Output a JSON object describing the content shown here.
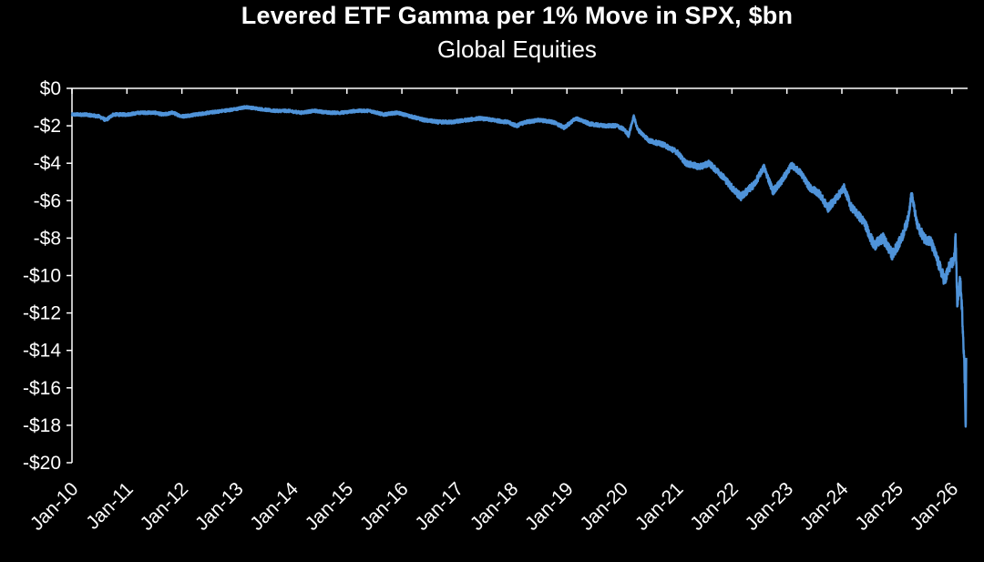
{
  "chart_data": {
    "type": "line",
    "title": "Levered ETF Gamma per 1% Move in SPX, $bn",
    "subtitle": "Global Equities",
    "xlabel": "",
    "ylabel": "",
    "grid": false,
    "legend": "none",
    "colors": {
      "background": "#000000",
      "axis": "#ffffff",
      "line": "#4f93d9",
      "text": "#ffffff"
    },
    "xlim": [
      "2010-01-01",
      "2026-04-15"
    ],
    "ylim": [
      -20,
      0
    ],
    "y_ticks": [
      0,
      -2,
      -4,
      -6,
      -8,
      -10,
      -12,
      -14,
      -16,
      -18,
      -20
    ],
    "y_tick_labels": [
      "$0",
      "-$2",
      "-$4",
      "-$6",
      "-$8",
      "-$10",
      "-$12",
      "-$14",
      "-$16",
      "-$18",
      "-$20"
    ],
    "x_tick_labels": [
      "Jan-10",
      "Jan-11",
      "Jan-12",
      "Jan-13",
      "Jan-14",
      "Jan-15",
      "Jan-16",
      "Jan-17",
      "Jan-18",
      "Jan-19",
      "Jan-20",
      "Jan-21",
      "Jan-22",
      "Jan-23",
      "Jan-24",
      "Jan-25",
      "Jan-26"
    ],
    "x_tick_dates": [
      "2010-01-01",
      "2011-01-01",
      "2012-01-01",
      "2013-01-01",
      "2014-01-01",
      "2015-01-01",
      "2016-01-01",
      "2017-01-01",
      "2018-01-01",
      "2019-01-01",
      "2020-01-01",
      "2021-01-01",
      "2022-01-01",
      "2023-01-01",
      "2024-01-01",
      "2025-01-01",
      "2026-01-01"
    ],
    "series": [
      {
        "name": "",
        "points": [
          [
            "2010-01-01",
            -1.4
          ],
          [
            "2010-04-01",
            -1.4
          ],
          [
            "2010-07-01",
            -1.5
          ],
          [
            "2010-08-15",
            -1.7
          ],
          [
            "2010-10-01",
            -1.4
          ],
          [
            "2011-01-01",
            -1.4
          ],
          [
            "2011-04-01",
            -1.3
          ],
          [
            "2011-07-01",
            -1.3
          ],
          [
            "2011-09-01",
            -1.4
          ],
          [
            "2011-11-01",
            -1.3
          ],
          [
            "2012-01-01",
            -1.5
          ],
          [
            "2012-04-01",
            -1.4
          ],
          [
            "2012-07-01",
            -1.3
          ],
          [
            "2012-10-01",
            -1.2
          ],
          [
            "2013-01-01",
            -1.1
          ],
          [
            "2013-03-01",
            -1.0
          ],
          [
            "2013-06-01",
            -1.1
          ],
          [
            "2013-09-01",
            -1.2
          ],
          [
            "2013-12-01",
            -1.2
          ],
          [
            "2014-03-01",
            -1.3
          ],
          [
            "2014-06-01",
            -1.2
          ],
          [
            "2014-09-01",
            -1.3
          ],
          [
            "2014-12-01",
            -1.3
          ],
          [
            "2015-03-01",
            -1.2
          ],
          [
            "2015-06-01",
            -1.2
          ],
          [
            "2015-09-01",
            -1.4
          ],
          [
            "2015-12-01",
            -1.3
          ],
          [
            "2016-03-01",
            -1.5
          ],
          [
            "2016-06-01",
            -1.7
          ],
          [
            "2016-09-01",
            -1.8
          ],
          [
            "2016-12-01",
            -1.8
          ],
          [
            "2017-03-01",
            -1.7
          ],
          [
            "2017-06-01",
            -1.6
          ],
          [
            "2017-09-01",
            -1.7
          ],
          [
            "2017-12-01",
            -1.8
          ],
          [
            "2018-02-01",
            -2.0
          ],
          [
            "2018-04-01",
            -1.8
          ],
          [
            "2018-07-01",
            -1.7
          ],
          [
            "2018-10-01",
            -1.8
          ],
          [
            "2018-12-15",
            -2.1
          ],
          [
            "2019-03-01",
            -1.6
          ],
          [
            "2019-06-01",
            -1.9
          ],
          [
            "2019-09-01",
            -2.0
          ],
          [
            "2019-12-01",
            -2.0
          ],
          [
            "2020-01-15",
            -2.2
          ],
          [
            "2020-02-15",
            -2.5
          ],
          [
            "2020-03-20",
            -1.5
          ],
          [
            "2020-04-15",
            -2.2
          ],
          [
            "2020-07-01",
            -2.8
          ],
          [
            "2020-10-01",
            -3.0
          ],
          [
            "2021-01-01",
            -3.4
          ],
          [
            "2021-03-01",
            -4.0
          ],
          [
            "2021-06-01",
            -4.2
          ],
          [
            "2021-08-01",
            -4.0
          ],
          [
            "2021-11-01",
            -4.7
          ],
          [
            "2022-01-01",
            -5.3
          ],
          [
            "2022-03-01",
            -5.8
          ],
          [
            "2022-06-01",
            -5.1
          ],
          [
            "2022-08-01",
            -4.2
          ],
          [
            "2022-10-01",
            -5.5
          ],
          [
            "2022-12-01",
            -4.9
          ],
          [
            "2023-02-01",
            -4.1
          ],
          [
            "2023-04-01",
            -4.5
          ],
          [
            "2023-06-01",
            -5.3
          ],
          [
            "2023-08-01",
            -5.6
          ],
          [
            "2023-10-01",
            -6.4
          ],
          [
            "2023-12-01",
            -5.8
          ],
          [
            "2024-01-15",
            -5.3
          ],
          [
            "2024-03-01",
            -6.3
          ],
          [
            "2024-06-01",
            -7.2
          ],
          [
            "2024-08-01",
            -8.4
          ],
          [
            "2024-10-01",
            -8.0
          ],
          [
            "2024-12-01",
            -8.9
          ],
          [
            "2025-02-01",
            -8.0
          ],
          [
            "2025-03-15",
            -7.0
          ],
          [
            "2025-04-08",
            -5.6
          ],
          [
            "2025-05-15",
            -7.3
          ],
          [
            "2025-07-01",
            -8.0
          ],
          [
            "2025-08-15",
            -8.2
          ],
          [
            "2025-10-01",
            -9.3
          ],
          [
            "2025-11-15",
            -10.3
          ],
          [
            "2025-12-15",
            -9.5
          ],
          [
            "2026-01-15",
            -9.2
          ],
          [
            "2026-01-25",
            -7.8
          ],
          [
            "2026-02-05",
            -11.5
          ],
          [
            "2026-02-25",
            -10.2
          ],
          [
            "2026-03-10",
            -12.0
          ],
          [
            "2026-03-20",
            -13.8
          ],
          [
            "2026-03-28",
            -15.9
          ],
          [
            "2026-04-03",
            -18.1
          ],
          [
            "2026-04-06",
            -14.4
          ]
        ]
      }
    ]
  }
}
